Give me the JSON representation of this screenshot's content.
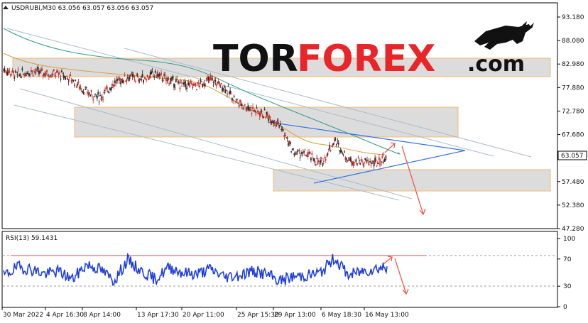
{
  "logo": {
    "part1": "TOR",
    "part2": "FOREX",
    "part3": ".com"
  },
  "chart_data": [
    {
      "type": "line",
      "title": "USDRUBi,M30  63.056 63.057 63.056 63.057",
      "symbol": "USDRUBi,M30",
      "ohlc_readout": "63.056 63.057 63.056 63.057",
      "current_price": "63.057",
      "y_ticks": [
        "93.180",
        "88.080",
        "82.980",
        "77.880",
        "72.780",
        "67.680",
        "62.580",
        "57.480",
        "52.380",
        "47.280"
      ],
      "ylim": [
        47.28,
        93.18
      ],
      "x_ticks": [
        "30 Mar 2022",
        "4 Apr 16:30",
        "8 Apr 14:00",
        "13 Apr 17:30",
        "20 Apr 11:00",
        "25 Apr 15:30",
        "29 Apr 13:00",
        "6 May 18:30",
        "16 May 13:00"
      ],
      "grid": false,
      "series": [
        {
          "x": [
            0,
            5,
            10,
            15,
            20,
            25,
            30,
            35,
            40,
            45,
            50,
            55,
            60,
            65,
            70,
            75,
            80,
            85,
            90,
            95,
            100,
            105,
            110,
            115,
            120,
            125,
            130,
            135,
            139
          ],
          "values": [
            81.8,
            80.6,
            81.5,
            81.0,
            80.8,
            79.6,
            76.8,
            75.7,
            78.8,
            80.2,
            79.8,
            80.8,
            79.4,
            78.4,
            78.3,
            79.6,
            78.0,
            74.6,
            73.2,
            72.0,
            70.0,
            63.8,
            63.4,
            61.2,
            66.5,
            62.2,
            61.8,
            61.4,
            63.057
          ]
        }
      ]
    },
    {
      "type": "line",
      "title": "RSI(13) 59.1431",
      "indicator": "RSI(13)",
      "value_label": "59.1431",
      "y_ticks": [
        "100",
        "70",
        "30",
        "0"
      ],
      "ylim": [
        0,
        100
      ],
      "series": [
        {
          "x": [
            0,
            5,
            10,
            15,
            20,
            25,
            30,
            35,
            40,
            45,
            50,
            55,
            60,
            65,
            70,
            75,
            80,
            85,
            90,
            95,
            100,
            105,
            110,
            115,
            120,
            125,
            130,
            135,
            139
          ],
          "values": [
            45,
            58,
            55,
            48,
            52,
            40,
            62,
            55,
            38,
            68,
            52,
            40,
            58,
            50,
            48,
            55,
            44,
            46,
            52,
            48,
            38,
            44,
            46,
            50,
            72,
            46,
            52,
            56,
            59.14
          ]
        }
      ]
    }
  ]
}
